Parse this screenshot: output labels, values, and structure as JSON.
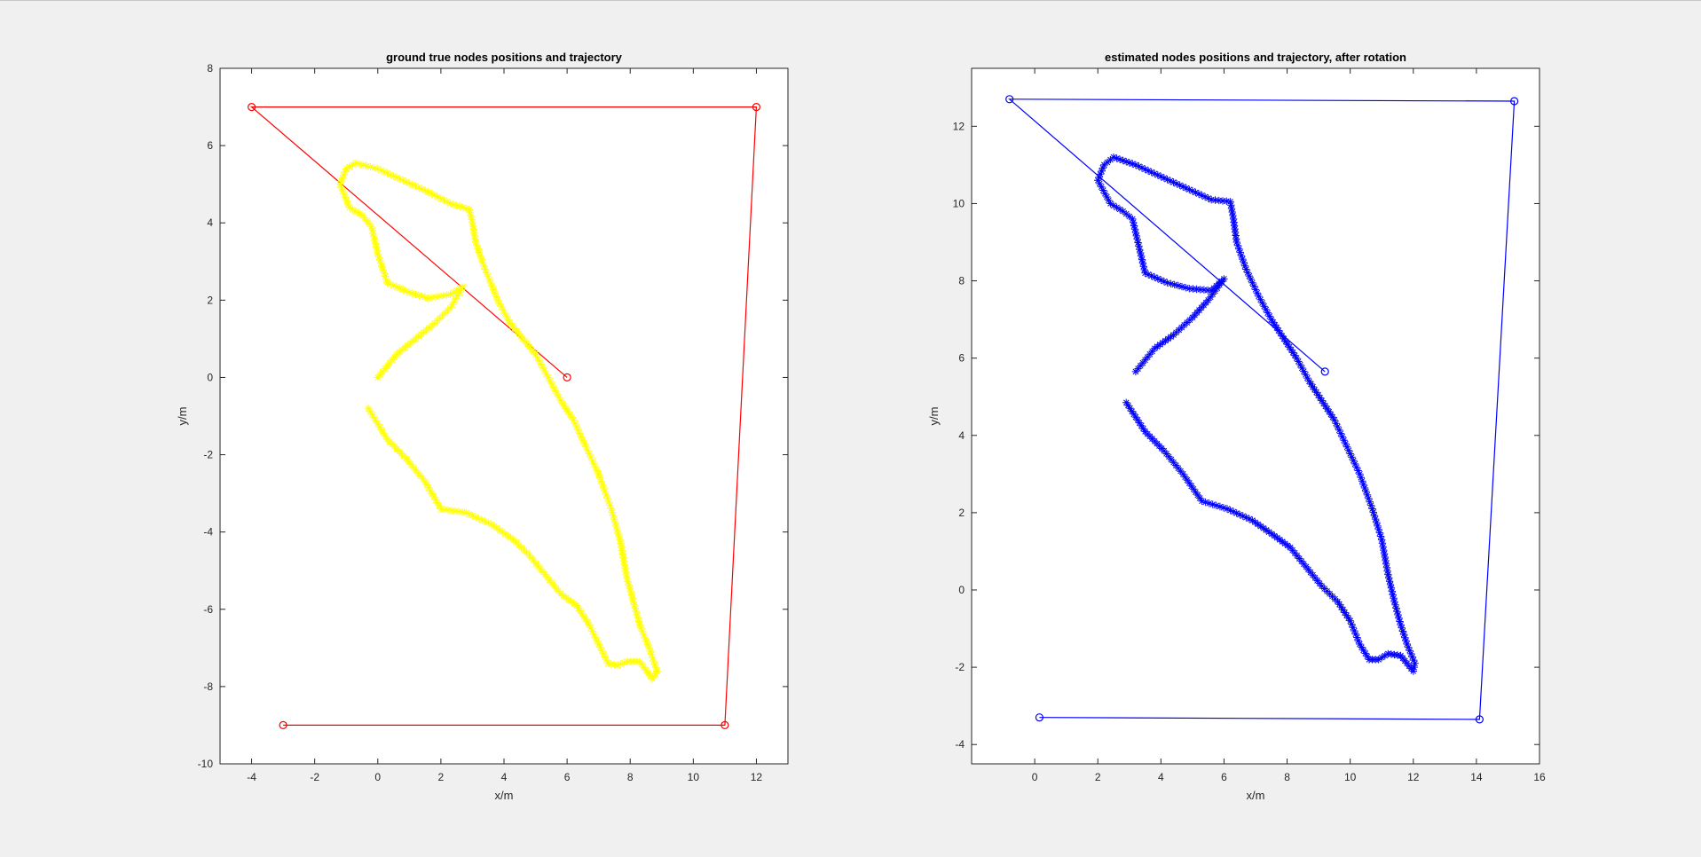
{
  "chart_data": [
    {
      "type": "line",
      "title": "ground true nodes positions and trajectory",
      "xlabel": "x/m",
      "ylabel": "y/m",
      "xlim": [
        -5,
        13
      ],
      "ylim": [
        -10,
        8
      ],
      "xticks": [
        -4,
        -2,
        0,
        2,
        4,
        6,
        8,
        10,
        12
      ],
      "yticks": [
        -10,
        -8,
        -6,
        -4,
        -2,
        0,
        2,
        4,
        6,
        8
      ],
      "grid": false,
      "series": [
        {
          "marker": "circle",
          "color": "#ff0000",
          "style": "line",
          "points": [
            [
              6,
              0
            ],
            [
              -4,
              7
            ],
            [
              12,
              7
            ],
            [
              11,
              -9
            ],
            [
              -3,
              -9
            ]
          ]
        },
        {
          "marker": "star",
          "color": "#ffff00",
          "style": "markers",
          "points": [
            [
              0.0,
              0.0
            ],
            [
              0.6,
              0.6
            ],
            [
              1.2,
              1.0
            ],
            [
              1.8,
              1.4
            ],
            [
              2.3,
              1.8
            ],
            [
              2.7,
              2.35
            ],
            [
              2.3,
              2.15
            ],
            [
              1.6,
              2.05
            ],
            [
              1.0,
              2.2
            ],
            [
              0.3,
              2.45
            ],
            [
              0.0,
              3.2
            ],
            [
              -0.2,
              3.9
            ],
            [
              -0.5,
              4.2
            ],
            [
              -0.9,
              4.4
            ],
            [
              -1.2,
              5.0
            ],
            [
              -1.0,
              5.4
            ],
            [
              -0.7,
              5.55
            ],
            [
              0.0,
              5.4
            ],
            [
              0.8,
              5.1
            ],
            [
              1.6,
              4.8
            ],
            [
              2.3,
              4.5
            ],
            [
              2.9,
              4.35
            ],
            [
              3.0,
              4.0
            ],
            [
              3.1,
              3.5
            ],
            [
              3.4,
              2.8
            ],
            [
              3.8,
              2.0
            ],
            [
              4.2,
              1.4
            ],
            [
              4.6,
              1.0
            ],
            [
              5.0,
              0.6
            ],
            [
              5.4,
              0.0
            ],
            [
              5.8,
              -0.6
            ],
            [
              6.2,
              -1.1
            ],
            [
              6.6,
              -1.8
            ],
            [
              7.0,
              -2.5
            ],
            [
              7.4,
              -3.4
            ],
            [
              7.7,
              -4.3
            ],
            [
              7.9,
              -5.2
            ],
            [
              8.1,
              -5.8
            ],
            [
              8.3,
              -6.4
            ],
            [
              8.6,
              -7.0
            ],
            [
              8.85,
              -7.6
            ],
            [
              8.7,
              -7.8
            ],
            [
              8.3,
              -7.35
            ],
            [
              7.9,
              -7.35
            ],
            [
              7.6,
              -7.45
            ],
            [
              7.3,
              -7.4
            ],
            [
              7.0,
              -6.9
            ],
            [
              6.7,
              -6.4
            ],
            [
              6.3,
              -5.9
            ],
            [
              5.8,
              -5.6
            ],
            [
              5.3,
              -5.1
            ],
            [
              4.8,
              -4.6
            ],
            [
              4.3,
              -4.2
            ],
            [
              3.6,
              -3.8
            ],
            [
              2.8,
              -3.5
            ],
            [
              2.0,
              -3.4
            ],
            [
              1.5,
              -2.7
            ],
            [
              0.9,
              -2.1
            ],
            [
              0.3,
              -1.6
            ],
            [
              -0.3,
              -0.8
            ]
          ]
        }
      ]
    },
    {
      "type": "line",
      "title": "estimated nodes positions and trajectory, after rotation",
      "xlabel": "x/m",
      "ylabel": "y/m",
      "xlim": [
        -2,
        16
      ],
      "ylim": [
        -4.5,
        13.5
      ],
      "xticks": [
        0,
        2,
        4,
        6,
        8,
        10,
        12,
        14,
        16
      ],
      "yticks": [
        -4,
        -2,
        0,
        2,
        4,
        6,
        8,
        10,
        12
      ],
      "grid": false,
      "series": [
        {
          "marker": "circle",
          "color": "#0000ff",
          "style": "line",
          "points": [
            [
              9.2,
              5.65
            ],
            [
              -0.8,
              12.7
            ],
            [
              15.2,
              12.65
            ],
            [
              14.1,
              -3.35
            ],
            [
              0.15,
              -3.3
            ]
          ]
        },
        {
          "marker": "star",
          "color": "#0000ff",
          "style": "markers",
          "points": [
            [
              3.2,
              5.65
            ],
            [
              3.8,
              6.25
            ],
            [
              4.4,
              6.6
            ],
            [
              5.0,
              7.05
            ],
            [
              5.5,
              7.5
            ],
            [
              6.0,
              8.05
            ],
            [
              5.6,
              7.75
            ],
            [
              4.9,
              7.8
            ],
            [
              4.2,
              7.95
            ],
            [
              3.5,
              8.2
            ],
            [
              3.3,
              8.9
            ],
            [
              3.1,
              9.6
            ],
            [
              2.8,
              9.8
            ],
            [
              2.4,
              10.0
            ],
            [
              2.0,
              10.6
            ],
            [
              2.2,
              11.0
            ],
            [
              2.5,
              11.2
            ],
            [
              3.2,
              11.0
            ],
            [
              4.0,
              10.7
            ],
            [
              4.8,
              10.4
            ],
            [
              5.6,
              10.1
            ],
            [
              6.2,
              10.05
            ],
            [
              6.3,
              9.6
            ],
            [
              6.4,
              9.0
            ],
            [
              6.7,
              8.3
            ],
            [
              7.1,
              7.6
            ],
            [
              7.5,
              7.0
            ],
            [
              7.9,
              6.5
            ],
            [
              8.3,
              6.0
            ],
            [
              8.7,
              5.4
            ],
            [
              9.1,
              4.9
            ],
            [
              9.5,
              4.4
            ],
            [
              9.9,
              3.7
            ],
            [
              10.3,
              3.0
            ],
            [
              10.7,
              2.1
            ],
            [
              11.0,
              1.3
            ],
            [
              11.2,
              0.4
            ],
            [
              11.4,
              -0.3
            ],
            [
              11.6,
              -0.9
            ],
            [
              11.8,
              -1.4
            ],
            [
              12.05,
              -1.9
            ],
            [
              12.0,
              -2.1
            ],
            [
              11.6,
              -1.7
            ],
            [
              11.2,
              -1.65
            ],
            [
              10.9,
              -1.8
            ],
            [
              10.6,
              -1.8
            ],
            [
              10.3,
              -1.4
            ],
            [
              10.0,
              -0.8
            ],
            [
              9.6,
              -0.3
            ],
            [
              9.1,
              0.1
            ],
            [
              8.6,
              0.6
            ],
            [
              8.1,
              1.1
            ],
            [
              7.6,
              1.4
            ],
            [
              6.9,
              1.8
            ],
            [
              6.1,
              2.1
            ],
            [
              5.3,
              2.3
            ],
            [
              4.7,
              3.0
            ],
            [
              4.1,
              3.6
            ],
            [
              3.5,
              4.1
            ],
            [
              2.9,
              4.85
            ]
          ]
        }
      ]
    }
  ]
}
